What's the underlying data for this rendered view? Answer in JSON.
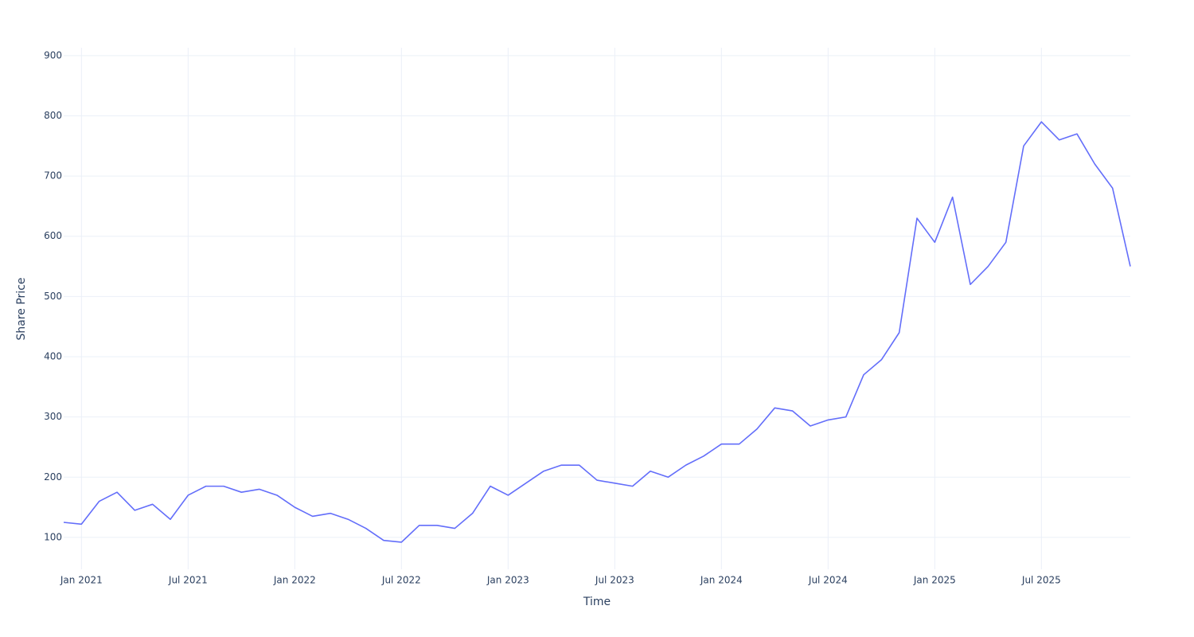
{
  "chart_data": {
    "type": "line",
    "x_label": "Time",
    "y_label": "Share Price",
    "x": [
      "2020-12",
      "2021-01",
      "2021-02",
      "2021-03",
      "2021-04",
      "2021-05",
      "2021-06",
      "2021-07",
      "2021-08",
      "2021-09",
      "2021-10",
      "2021-11",
      "2021-12",
      "2022-01",
      "2022-02",
      "2022-03",
      "2022-04",
      "2022-05",
      "2022-06",
      "2022-07",
      "2022-08",
      "2022-09",
      "2022-10",
      "2022-11",
      "2022-12",
      "2023-01",
      "2023-02",
      "2023-03",
      "2023-04",
      "2023-05",
      "2023-06",
      "2023-07",
      "2023-08",
      "2023-09",
      "2023-10",
      "2023-11",
      "2023-12",
      "2024-01",
      "2024-02",
      "2024-03",
      "2024-04",
      "2024-05",
      "2024-06",
      "2024-07",
      "2024-08",
      "2024-09",
      "2024-10",
      "2024-11",
      "2024-12",
      "2025-01",
      "2025-02",
      "2025-03",
      "2025-04",
      "2025-05",
      "2025-06",
      "2025-07",
      "2025-08",
      "2025-09",
      "2025-10",
      "2025-11",
      "2025-12"
    ],
    "series": [
      {
        "name": "Share Price",
        "color": "#636efa",
        "values": [
          125,
          122,
          160,
          175,
          145,
          155,
          130,
          170,
          185,
          185,
          175,
          180,
          170,
          150,
          135,
          140,
          130,
          115,
          95,
          92,
          120,
          120,
          115,
          140,
          185,
          170,
          190,
          210,
          220,
          220,
          195,
          190,
          185,
          210,
          200,
          220,
          235,
          255,
          255,
          280,
          315,
          310,
          285,
          295,
          300,
          370,
          395,
          440,
          630,
          590,
          665,
          520,
          550,
          590,
          750,
          790,
          760,
          770,
          720,
          680,
          550
        ]
      }
    ],
    "xlim": [
      "2020-12",
      "2025-12"
    ],
    "xticks": [
      {
        "value": "2021-01",
        "label": "Jan 2021"
      },
      {
        "value": "2021-07",
        "label": "Jul 2021"
      },
      {
        "value": "2022-01",
        "label": "Jan 2022"
      },
      {
        "value": "2022-07",
        "label": "Jul 2022"
      },
      {
        "value": "2023-01",
        "label": "Jan 2023"
      },
      {
        "value": "2023-07",
        "label": "Jul 2023"
      },
      {
        "value": "2024-01",
        "label": "Jan 2024"
      },
      {
        "value": "2024-07",
        "label": "Jul 2024"
      },
      {
        "value": "2025-01",
        "label": "Jan 2025"
      },
      {
        "value": "2025-07",
        "label": "Jul 2025"
      }
    ],
    "ylim": [
      47,
      913
    ],
    "yticks": [
      100,
      200,
      300,
      400,
      500,
      600,
      700,
      800,
      900
    ],
    "grid": true
  }
}
